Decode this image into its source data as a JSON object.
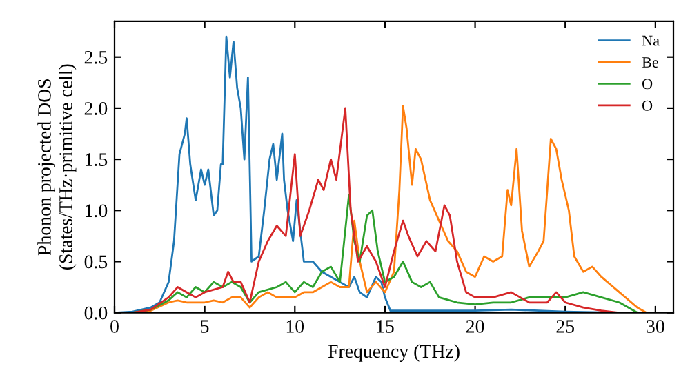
{
  "chart_data": {
    "type": "line",
    "xlabel": "Frequency (THz)",
    "ylabel": "Phonon projected DOS\n(States/THz·primitive cell)",
    "xlim": [
      0,
      31
    ],
    "ylim": [
      0,
      2.85
    ],
    "xticks": [
      0,
      5,
      10,
      15,
      20,
      25,
      30
    ],
    "yticks": [
      {
        "value": 0,
        "label": "0.0"
      },
      0.5,
      {
        "value": 1,
        "label": "1.0"
      },
      1.5,
      {
        "value": 2,
        "label": "2.0"
      },
      2.5
    ],
    "legend": "top right",
    "grid": false,
    "series": [
      {
        "name": "Na",
        "color": "#1f77b4",
        "x": [
          0,
          1,
          2,
          2.5,
          3,
          3.3,
          3.6,
          3.9,
          4.0,
          4.2,
          4.5,
          4.8,
          5.0,
          5.2,
          5.5,
          5.7,
          5.9,
          6.0,
          6.2,
          6.4,
          6.6,
          6.8,
          7.0,
          7.2,
          7.4,
          7.6,
          8.0,
          8.3,
          8.6,
          8.8,
          9.0,
          9.3,
          9.4,
          9.6,
          9.9,
          10.1,
          10.5,
          11,
          11.5,
          12,
          12.5,
          13,
          13.3,
          13.6,
          14,
          14.5,
          14.8,
          15,
          15.3,
          16,
          20,
          22,
          25,
          28
        ],
        "values": [
          0,
          0.01,
          0.05,
          0.1,
          0.3,
          0.7,
          1.55,
          1.75,
          1.9,
          1.45,
          1.1,
          1.4,
          1.25,
          1.4,
          0.95,
          1.0,
          1.45,
          1.45,
          2.7,
          2.3,
          2.65,
          2.2,
          2.0,
          1.5,
          2.3,
          0.5,
          0.55,
          1.0,
          1.5,
          1.65,
          1.3,
          1.75,
          1.3,
          1.0,
          0.7,
          1.1,
          0.5,
          0.5,
          0.4,
          0.35,
          0.3,
          0.25,
          0.35,
          0.2,
          0.15,
          0.35,
          0.3,
          0.15,
          0.02,
          0.02,
          0.02,
          0.03,
          0.01,
          0
        ]
      },
      {
        "name": "Be",
        "color": "#ff7f0e",
        "x": [
          0,
          1,
          2,
          3,
          3.5,
          4,
          5,
          5.5,
          6,
          6.5,
          7,
          7.5,
          8,
          8.5,
          9,
          10,
          10.5,
          11,
          11.5,
          12,
          12.5,
          13,
          13.3,
          13.6,
          14,
          14.5,
          15,
          15.5,
          15.8,
          16.0,
          16.2,
          16.5,
          16.7,
          17.0,
          17.5,
          18,
          18.5,
          19,
          19.5,
          20,
          20.5,
          21,
          21.5,
          21.8,
          22.0,
          22.3,
          22.6,
          23,
          23.5,
          23.8,
          24.2,
          24.5,
          24.8,
          25.2,
          25.5,
          26,
          26.5,
          27,
          28,
          29,
          29.5
        ],
        "values": [
          0,
          0,
          0.02,
          0.1,
          0.12,
          0.1,
          0.1,
          0.12,
          0.1,
          0.15,
          0.15,
          0.05,
          0.15,
          0.2,
          0.15,
          0.15,
          0.2,
          0.2,
          0.25,
          0.3,
          0.25,
          0.25,
          0.9,
          0.5,
          0.2,
          0.3,
          0.2,
          0.4,
          1.2,
          2.02,
          1.8,
          1.25,
          1.6,
          1.5,
          1.1,
          0.9,
          0.7,
          0.6,
          0.4,
          0.35,
          0.55,
          0.5,
          0.55,
          1.2,
          1.05,
          1.6,
          0.8,
          0.45,
          0.6,
          0.7,
          1.7,
          1.6,
          1.3,
          1.0,
          0.55,
          0.4,
          0.45,
          0.35,
          0.2,
          0.05,
          0
        ]
      },
      {
        "name": "O",
        "color": "#2ca02c",
        "x": [
          0,
          1,
          2,
          3,
          3.5,
          4,
          4.5,
          5,
          5.5,
          6,
          6.5,
          7,
          7.5,
          8,
          9,
          9.5,
          10,
          10.5,
          11,
          11.5,
          12,
          12.5,
          13,
          13.3,
          13.6,
          14,
          14.3,
          14.6,
          15,
          15.5,
          16,
          16.5,
          17,
          17.5,
          18,
          19,
          20,
          21,
          22,
          23,
          24,
          25,
          26,
          27,
          28,
          29
        ],
        "values": [
          0,
          0,
          0.03,
          0.12,
          0.2,
          0.15,
          0.25,
          0.2,
          0.3,
          0.25,
          0.3,
          0.25,
          0.1,
          0.2,
          0.25,
          0.3,
          0.2,
          0.3,
          0.25,
          0.4,
          0.45,
          0.3,
          1.15,
          0.7,
          0.5,
          0.95,
          1.0,
          0.6,
          0.3,
          0.35,
          0.5,
          0.3,
          0.25,
          0.3,
          0.15,
          0.1,
          0.08,
          0.1,
          0.1,
          0.15,
          0.15,
          0.15,
          0.2,
          0.15,
          0.1,
          0
        ]
      },
      {
        "name": "O",
        "color": "#d62728",
        "x": [
          0,
          1,
          2,
          3,
          3.5,
          4,
          4.5,
          5,
          6,
          6.3,
          6.6,
          7,
          7.5,
          8,
          8.5,
          9,
          9.5,
          10,
          10.3,
          10.8,
          11.3,
          11.6,
          12,
          12.3,
          12.8,
          13.1,
          13.5,
          14,
          14.5,
          15,
          15.5,
          16,
          16.3,
          16.8,
          17.3,
          17.8,
          18.3,
          18.6,
          19,
          19.5,
          20,
          21,
          22,
          22.5,
          23,
          24,
          24.5,
          25,
          26,
          27,
          28
        ],
        "values": [
          0,
          0,
          0.03,
          0.15,
          0.25,
          0.2,
          0.15,
          0.2,
          0.25,
          0.4,
          0.3,
          0.3,
          0.1,
          0.5,
          0.7,
          0.85,
          0.75,
          1.55,
          0.75,
          1.0,
          1.3,
          1.2,
          1.5,
          1.3,
          2.0,
          1.0,
          0.5,
          0.65,
          0.5,
          0.25,
          0.6,
          0.9,
          0.75,
          0.55,
          0.7,
          0.6,
          1.05,
          0.95,
          0.5,
          0.2,
          0.15,
          0.15,
          0.2,
          0.15,
          0.1,
          0.1,
          0.2,
          0.1,
          0.05,
          0.02,
          0
        ]
      }
    ]
  }
}
